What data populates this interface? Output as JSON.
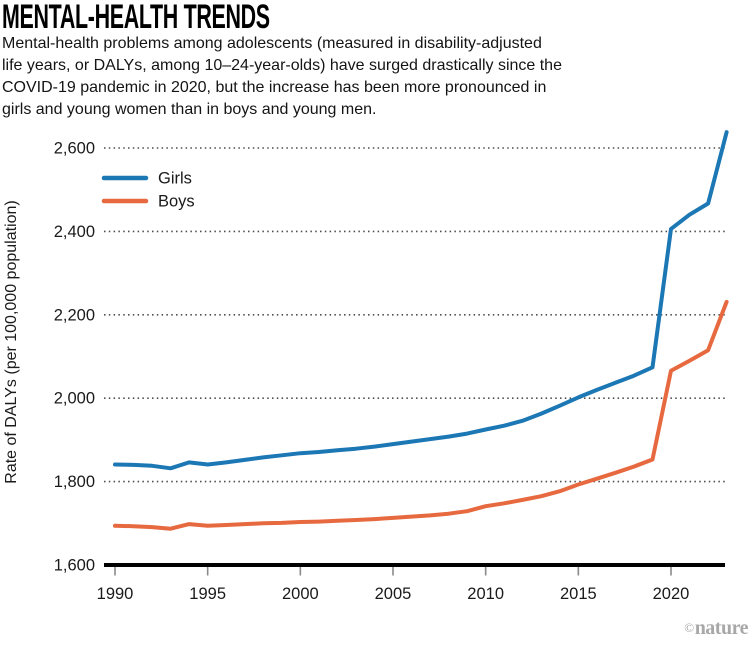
{
  "header": {
    "title": "MENTAL-HEALTH TRENDS",
    "subtitle": "Mental-health problems among adolescents (measured in disability-adjusted\nlife years, or DALYs, among 10–24-year-olds) have surged drastically since the\nCOVID-19 pandemic in 2020, but the increase has been more pronounced in\ngirls and young women than in boys and young men."
  },
  "watermark": {
    "copyright": "©",
    "brand": "nature"
  },
  "colors": {
    "girls_line": "#1c77b5",
    "boys_line": "#e7693f",
    "axis": "#000000",
    "gridline": "#4d4d4d",
    "tick": "#8a8a8a",
    "label_text": "#1a1a1a"
  },
  "chart_data": {
    "type": "line",
    "title": "",
    "xlabel": "",
    "ylabel": "Rate of DALYs (per 100,000 population)",
    "x": [
      1990,
      1991,
      1992,
      1993,
      1994,
      1995,
      1996,
      1997,
      1998,
      1999,
      2000,
      2001,
      2002,
      2003,
      2004,
      2005,
      2006,
      2007,
      2008,
      2009,
      2010,
      2011,
      2012,
      2013,
      2014,
      2015,
      2016,
      2017,
      2018,
      2019,
      2020,
      2021,
      2022,
      2023
    ],
    "series": [
      {
        "name": "Girls",
        "color": "#1c77b5",
        "values": [
          1841,
          1840,
          1838,
          1832,
          1846,
          1841,
          1846,
          1852,
          1858,
          1863,
          1868,
          1871,
          1875,
          1879,
          1884,
          1890,
          1896,
          1902,
          1908,
          1915,
          1925,
          1934,
          1946,
          1963,
          1982,
          2002,
          2020,
          2037,
          2054,
          2074,
          2406,
          2440,
          2467,
          2638
        ]
      },
      {
        "name": "Boys",
        "color": "#e7693f",
        "values": [
          1694,
          1693,
          1691,
          1687,
          1698,
          1694,
          1696,
          1698,
          1700,
          1701,
          1703,
          1704,
          1706,
          1708,
          1710,
          1713,
          1716,
          1719,
          1723,
          1729,
          1741,
          1748,
          1756,
          1765,
          1777,
          1793,
          1807,
          1821,
          1836,
          1853,
          2066,
          2090,
          2115,
          2231
        ]
      }
    ],
    "xticks": [
      1990,
      1995,
      2000,
      2005,
      2010,
      2015,
      2020
    ],
    "yticks": [
      1600,
      1800,
      2000,
      2200,
      2400,
      2600
    ],
    "xlim": [
      1990,
      2023
    ],
    "ylim": [
      1600,
      2660
    ],
    "grid": "dotted-horizontal",
    "legend_position": "top-left-inside"
  }
}
